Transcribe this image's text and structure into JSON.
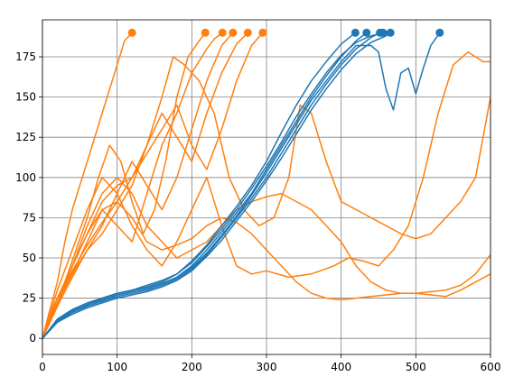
{
  "chart_data": {
    "type": "line",
    "title": "",
    "xlabel": "",
    "ylabel": "",
    "xlim": [
      0,
      600
    ],
    "ylim": [
      -10,
      198
    ],
    "xticks": [
      0,
      100,
      200,
      300,
      400,
      500,
      600
    ],
    "yticks": [
      0,
      25,
      50,
      75,
      100,
      125,
      150,
      175
    ],
    "xtick_labels": [
      "0",
      "100",
      "200",
      "300",
      "400",
      "500",
      "600"
    ],
    "ytick_labels": [
      "0",
      "25",
      "50",
      "75",
      "100",
      "125",
      "150",
      "175"
    ],
    "grid": true,
    "legend": "none",
    "colors": {
      "blue": "#1f77b4",
      "orange": "#ff7f0e",
      "grid": "#808080",
      "axis": "#000000"
    },
    "series": [
      {
        "color": "#ff7f0e",
        "end_marker": true,
        "x": [
          0,
          10,
          20,
          30,
          40,
          50,
          60,
          70,
          80,
          90,
          100,
          110,
          120
        ],
        "y": [
          0,
          18,
          35,
          60,
          80,
          95,
          110,
          125,
          140,
          155,
          170,
          185,
          190
        ]
      },
      {
        "color": "#ff7f0e",
        "end_marker": true,
        "x": [
          0,
          15,
          30,
          45,
          60,
          75,
          90,
          105,
          120,
          135,
          150,
          165,
          180,
          195,
          210,
          218
        ],
        "y": [
          0,
          20,
          35,
          55,
          75,
          100,
          120,
          110,
          85,
          65,
          80,
          110,
          150,
          175,
          185,
          190
        ]
      },
      {
        "color": "#ff7f0e",
        "end_marker": true,
        "x": [
          0,
          20,
          40,
          60,
          80,
          100,
          120,
          140,
          160,
          180,
          200,
          220,
          230,
          241
        ],
        "y": [
          0,
          25,
          40,
          60,
          80,
          70,
          60,
          90,
          120,
          140,
          165,
          180,
          186,
          190
        ]
      },
      {
        "color": "#ff7f0e",
        "end_marker": true,
        "x": [
          0,
          20,
          40,
          60,
          80,
          100,
          120,
          140,
          160,
          180,
          200,
          220,
          240,
          255
        ],
        "y": [
          0,
          22,
          40,
          55,
          70,
          90,
          110,
          95,
          80,
          100,
          130,
          160,
          182,
          190
        ]
      },
      {
        "color": "#ff7f0e",
        "end_marker": true,
        "x": [
          0,
          20,
          40,
          60,
          80,
          100,
          120,
          140,
          160,
          180,
          200,
          220,
          240,
          260,
          275
        ],
        "y": [
          0,
          20,
          38,
          55,
          65,
          80,
          95,
          120,
          140,
          125,
          110,
          140,
          165,
          183,
          190
        ]
      },
      {
        "color": "#ff7f0e",
        "end_marker": true,
        "x": [
          0,
          20,
          40,
          60,
          80,
          100,
          120,
          140,
          160,
          180,
          200,
          220,
          240,
          260,
          280,
          295
        ],
        "y": [
          0,
          22,
          42,
          58,
          72,
          85,
          100,
          115,
          130,
          145,
          120,
          105,
          130,
          160,
          182,
          190
        ]
      },
      {
        "color": "#ff7f0e",
        "end_marker": false,
        "x": [
          0,
          20,
          40,
          60,
          80,
          100,
          120,
          140,
          160,
          175,
          190,
          210,
          230,
          250,
          270,
          290,
          310,
          330,
          345,
          360,
          380,
          400,
          420,
          440,
          460,
          480,
          500,
          520,
          540,
          560,
          580,
          600
        ],
        "y": [
          0,
          25,
          45,
          65,
          85,
          95,
          100,
          120,
          150,
          175,
          170,
          160,
          140,
          100,
          80,
          70,
          75,
          100,
          145,
          140,
          110,
          85,
          80,
          75,
          70,
          65,
          62,
          65,
          75,
          85,
          100,
          150
        ]
      },
      {
        "color": "#ff7f0e",
        "end_marker": false,
        "x": [
          0,
          20,
          40,
          60,
          80,
          100,
          120,
          140,
          160,
          180,
          200,
          220,
          240,
          260,
          280,
          300,
          330,
          360,
          390,
          410,
          430,
          450,
          470,
          490,
          510,
          530,
          550,
          570,
          590,
          600
        ],
        "y": [
          0,
          30,
          55,
          80,
          100,
          90,
          70,
          55,
          45,
          60,
          80,
          100,
          70,
          45,
          40,
          42,
          38,
          40,
          45,
          50,
          48,
          45,
          55,
          70,
          100,
          140,
          170,
          178,
          172,
          172
        ]
      },
      {
        "color": "#ff7f0e",
        "end_marker": false,
        "x": [
          0,
          20,
          40,
          60,
          80,
          100,
          120,
          140,
          160,
          180,
          200,
          220,
          240,
          260,
          280,
          300,
          320,
          340,
          360,
          380,
          400,
          420,
          440,
          460,
          480,
          500,
          520,
          540,
          560,
          580,
          600
        ],
        "y": [
          0,
          20,
          45,
          70,
          90,
          100,
          90,
          70,
          60,
          50,
          55,
          60,
          70,
          80,
          85,
          88,
          90,
          85,
          80,
          70,
          60,
          45,
          35,
          30,
          28,
          28,
          27,
          26,
          30,
          35,
          40
        ]
      },
      {
        "color": "#ff7f0e",
        "end_marker": false,
        "x": [
          0,
          20,
          40,
          60,
          80,
          100,
          120,
          140,
          160,
          180,
          200,
          220,
          240,
          260,
          280,
          300,
          320,
          340,
          360,
          380,
          400,
          420,
          440,
          460,
          480,
          500,
          520,
          540,
          560,
          580,
          600
        ],
        "y": [
          0,
          22,
          45,
          65,
          80,
          85,
          75,
          60,
          55,
          58,
          62,
          70,
          75,
          72,
          65,
          55,
          45,
          35,
          28,
          25,
          24,
          25,
          26,
          27,
          28,
          28,
          29,
          30,
          33,
          40,
          52
        ]
      },
      {
        "color": "#1f77b4",
        "end_marker": true,
        "x": [
          0,
          20,
          40,
          60,
          80,
          100,
          120,
          140,
          160,
          180,
          200,
          220,
          240,
          260,
          280,
          300,
          320,
          340,
          360,
          380,
          400,
          419
        ],
        "y": [
          0,
          12,
          18,
          22,
          25,
          28,
          30,
          32,
          35,
          40,
          48,
          58,
          70,
          82,
          95,
          110,
          128,
          145,
          160,
          172,
          183,
          190
        ]
      },
      {
        "color": "#1f77b4",
        "end_marker": true,
        "x": [
          0,
          20,
          40,
          60,
          80,
          100,
          120,
          140,
          160,
          180,
          200,
          220,
          240,
          260,
          280,
          300,
          320,
          340,
          360,
          380,
          400,
          420,
          434
        ],
        "y": [
          0,
          11,
          17,
          21,
          24,
          27,
          29,
          31,
          34,
          38,
          45,
          55,
          66,
          78,
          90,
          105,
          120,
          135,
          150,
          163,
          175,
          185,
          190
        ]
      },
      {
        "color": "#1f77b4",
        "end_marker": true,
        "x": [
          0,
          20,
          40,
          60,
          80,
          100,
          120,
          140,
          160,
          180,
          200,
          220,
          240,
          260,
          280,
          300,
          320,
          340,
          360,
          380,
          400,
          420,
          440,
          452
        ],
        "y": [
          0,
          10,
          16,
          20,
          23,
          26,
          28,
          30,
          33,
          37,
          43,
          52,
          63,
          75,
          87,
          100,
          115,
          130,
          145,
          158,
          170,
          180,
          187,
          190
        ]
      },
      {
        "color": "#1f77b4",
        "end_marker": true,
        "x": [
          0,
          20,
          40,
          60,
          80,
          100,
          120,
          140,
          160,
          180,
          200,
          220,
          240,
          260,
          280,
          300,
          320,
          340,
          360,
          380,
          400,
          420,
          440,
          456
        ],
        "y": [
          0,
          11,
          17,
          21,
          25,
          28,
          30,
          33,
          36,
          40,
          47,
          57,
          68,
          80,
          93,
          107,
          122,
          138,
          152,
          165,
          176,
          184,
          188,
          190
        ]
      },
      {
        "color": "#1f77b4",
        "end_marker": true,
        "x": [
          0,
          20,
          40,
          60,
          80,
          100,
          120,
          140,
          160,
          180,
          200,
          220,
          240,
          260,
          280,
          300,
          320,
          340,
          360,
          380,
          400,
          420,
          440,
          460,
          466
        ],
        "y": [
          0,
          10,
          15,
          19,
          22,
          25,
          27,
          29,
          32,
          36,
          42,
          51,
          61,
          73,
          85,
          98,
          112,
          127,
          142,
          155,
          167,
          177,
          184,
          188,
          190
        ]
      },
      {
        "color": "#1f77b4",
        "end_marker": true,
        "x": [
          0,
          20,
          40,
          60,
          80,
          100,
          120,
          140,
          160,
          180,
          200,
          220,
          240,
          260,
          280,
          300,
          320,
          340,
          360,
          380,
          400,
          420,
          440,
          450,
          460,
          470,
          480,
          490,
          500,
          510,
          520,
          532
        ],
        "y": [
          0,
          11,
          17,
          21,
          24,
          27,
          29,
          31,
          34,
          38,
          44,
          53,
          64,
          76,
          89,
          103,
          118,
          133,
          148,
          160,
          172,
          182,
          182,
          178,
          155,
          142,
          165,
          168,
          152,
          168,
          182,
          190
        ]
      }
    ]
  }
}
